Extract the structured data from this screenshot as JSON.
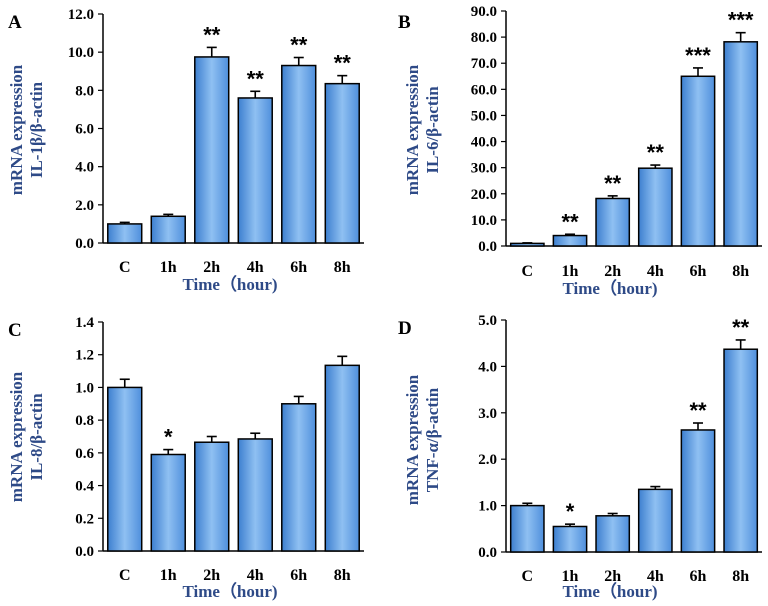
{
  "colors": {
    "bar": "#5b9be0",
    "bar_light": "#8fc0f2",
    "bar_dark": "#3d7fcf",
    "axis_title": "#2e4a87"
  },
  "chart_data": [
    {
      "id": "A",
      "type": "bar",
      "panel_label": "A",
      "categories": [
        "C",
        "1h",
        "2h",
        "4h",
        "6h",
        "8h"
      ],
      "values": [
        1.0,
        1.4,
        9.75,
        7.6,
        9.3,
        8.35
      ],
      "errors": [
        0.08,
        0.1,
        0.5,
        0.35,
        0.42,
        0.42
      ],
      "significance": [
        "",
        "",
        "**",
        "**",
        "**",
        "**"
      ],
      "ylabel_line1": "mRNA expression",
      "ylabel_line2": "IL-1β/β-actin",
      "xlabel": "Time（hour)",
      "yticks": [
        "0.0",
        "2.0",
        "4.0",
        "6.0",
        "8.0",
        "10.0",
        "12.0"
      ],
      "ylim": [
        0,
        12
      ]
    },
    {
      "id": "B",
      "type": "bar",
      "panel_label": "B",
      "categories": [
        "C",
        "1h",
        "2h",
        "4h",
        "6h",
        "8h"
      ],
      "values": [
        1.0,
        4.0,
        18.2,
        29.8,
        65.0,
        78.2
      ],
      "errors": [
        0.2,
        0.5,
        1.0,
        1.2,
        3.2,
        3.5
      ],
      "significance": [
        "",
        "**",
        "**",
        "**",
        "***",
        "***"
      ],
      "ylabel_line1": "mRNA expression",
      "ylabel_line2": "IL-6/β-actin",
      "xlabel": "Time（hour)",
      "yticks": [
        "0.0",
        "10.0",
        "20.0",
        "30.0",
        "40.0",
        "50.0",
        "60.0",
        "70.0",
        "80.0",
        "90.0"
      ],
      "ylim": [
        0,
        90
      ]
    },
    {
      "id": "C",
      "type": "bar",
      "panel_label": "C",
      "categories": [
        "C",
        "1h",
        "2h",
        "4h",
        "6h",
        "8h"
      ],
      "values": [
        1.0,
        0.59,
        0.665,
        0.685,
        0.9,
        1.135
      ],
      "errors": [
        0.05,
        0.03,
        0.035,
        0.035,
        0.045,
        0.055
      ],
      "significance": [
        "",
        "*",
        "",
        "",
        "",
        ""
      ],
      "ylabel_line1": "mRNA expression",
      "ylabel_line2": "IL-8/β-actin",
      "xlabel": "Time（hour)",
      "yticks": [
        "0.0",
        "0.2",
        "0.4",
        "0.6",
        "0.8",
        "1.0",
        "1.2",
        "1.4"
      ],
      "ylim": [
        0,
        1.4
      ]
    },
    {
      "id": "D",
      "type": "bar",
      "panel_label": "D",
      "categories": [
        "C",
        "1h",
        "2h",
        "4h",
        "6h",
        "8h"
      ],
      "values": [
        1.0,
        0.55,
        0.78,
        1.35,
        2.63,
        4.37
      ],
      "errors": [
        0.05,
        0.05,
        0.05,
        0.06,
        0.15,
        0.2
      ],
      "significance": [
        "",
        "*",
        "",
        "",
        "**",
        "**"
      ],
      "ylabel_line1": "mRNA expression",
      "ylabel_line2": "TNF-α/β-actin",
      "xlabel": "Time（hour)",
      "yticks": [
        "0.0",
        "1.0",
        "2.0",
        "3.0",
        "4.0",
        "5.0"
      ],
      "ylim": [
        0,
        5
      ]
    }
  ]
}
